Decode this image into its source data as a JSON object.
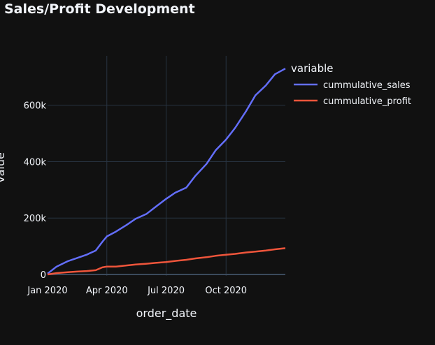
{
  "chart_data": {
    "type": "line",
    "title": "Sales/Profit Development",
    "xlabel": "order_date",
    "ylabel": "value",
    "x_tick_labels": [
      "Jan 2020",
      "Apr 2020",
      "Jul 2020",
      "Oct 2020"
    ],
    "y_tick_labels": [
      "0",
      "200k",
      "400k",
      "600k"
    ],
    "xlim": [
      "2020-01-01",
      "2020-12-31"
    ],
    "ylim": [
      -5000,
      775000
    ],
    "grid": true,
    "legend": {
      "title": "variable",
      "position": "right"
    },
    "x": [
      "2020-01-01",
      "2020-01-15",
      "2020-02-01",
      "2020-02-15",
      "2020-03-01",
      "2020-03-15",
      "2020-03-25",
      "2020-04-01",
      "2020-04-15",
      "2020-05-01",
      "2020-05-15",
      "2020-06-01",
      "2020-06-15",
      "2020-07-01",
      "2020-07-15",
      "2020-08-01",
      "2020-08-15",
      "2020-09-01",
      "2020-09-15",
      "2020-10-01",
      "2020-10-15",
      "2020-11-01",
      "2020-11-15",
      "2020-12-01",
      "2020-12-15",
      "2020-12-31"
    ],
    "series": [
      {
        "name": "cummulative_sales",
        "color": "#636efa",
        "values": [
          3000,
          28000,
          47000,
          58000,
          70000,
          85000,
          115000,
          135000,
          152000,
          175000,
          197000,
          215000,
          240000,
          268000,
          290000,
          308000,
          350000,
          392000,
          440000,
          478000,
          520000,
          580000,
          635000,
          670000,
          710000,
          730000
        ]
      },
      {
        "name": "cummulative_profit",
        "color": "#ef553b",
        "values": [
          0,
          5000,
          8000,
          10000,
          12000,
          15000,
          25000,
          28000,
          28000,
          32000,
          35000,
          38000,
          41000,
          44000,
          48000,
          52000,
          57000,
          61000,
          66000,
          70000,
          73000,
          78000,
          81000,
          85000,
          89000,
          93000
        ]
      }
    ]
  },
  "colors": {
    "background": "#111111",
    "grid": "#283442",
    "zeroline": "#3b4a5c",
    "text": "#f2f5fa"
  }
}
